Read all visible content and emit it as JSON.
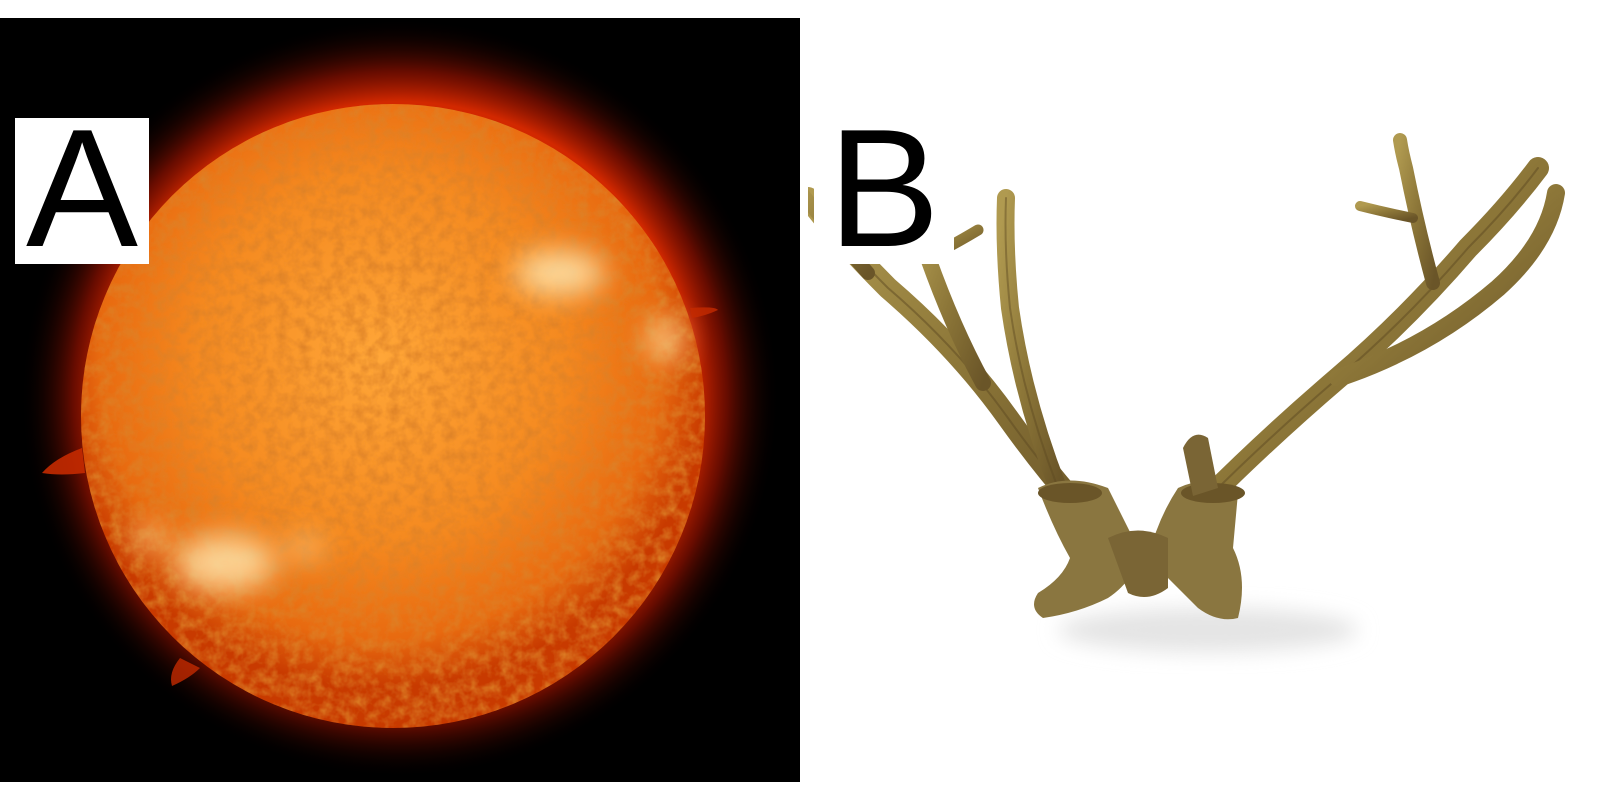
{
  "panels": [
    {
      "label": "A",
      "subject": "sun-photo",
      "colors": {
        "background": "#000000",
        "core": "#ff9a2a",
        "surface": "#f07818",
        "limb": "#c83400",
        "corona": "#b01800",
        "bright_region": "#ffe8b0"
      }
    },
    {
      "label": "B",
      "subject": "antler-photo",
      "colors": {
        "background": "#ffffff",
        "antler_light": "#b09a50",
        "antler_mid": "#8c7638",
        "antler_dark": "#5e4a22",
        "shadow": "#e4e4e4"
      }
    }
  ]
}
